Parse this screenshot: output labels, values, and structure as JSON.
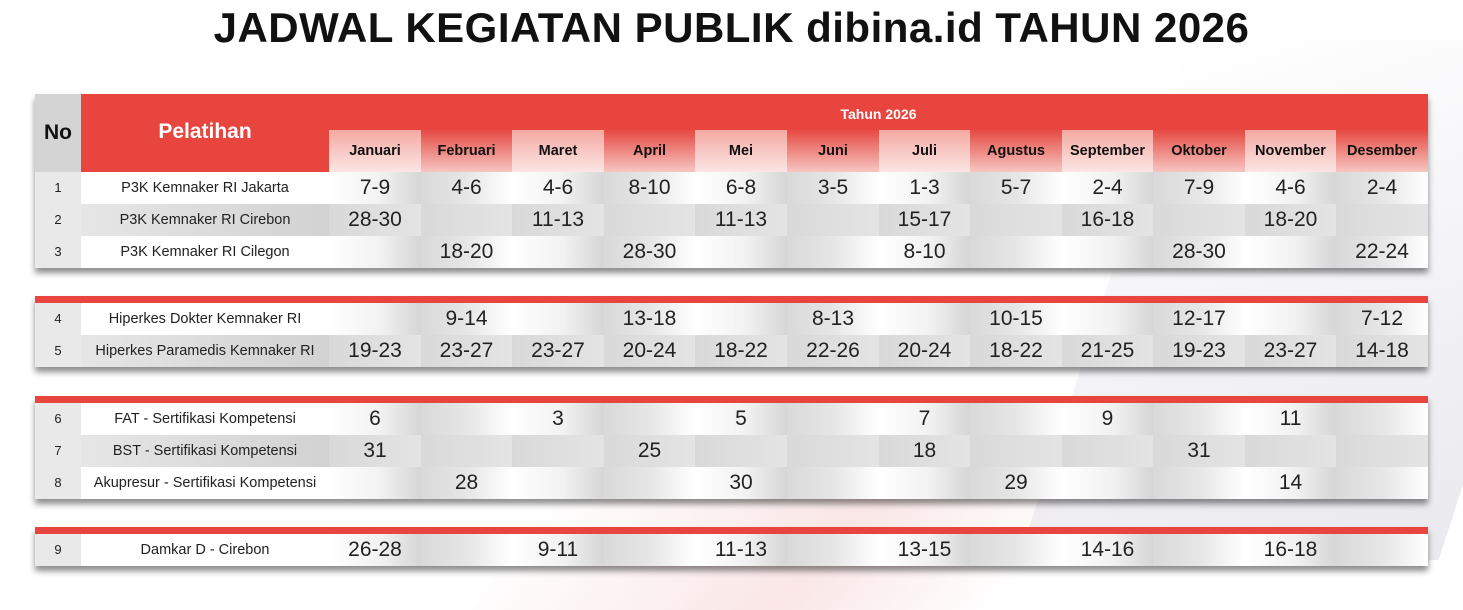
{
  "title": "JADWAL KEGIATAN PUBLIK dibina.id TAHUN 2026",
  "header": {
    "no": "No",
    "pelatihan": "Pelatihan",
    "year": "Tahun 2026",
    "months": [
      "Januari",
      "Februari",
      "Maret",
      "April",
      "Mei",
      "Juni",
      "Juli",
      "Agustus",
      "September",
      "Oktober",
      "November",
      "Desember"
    ]
  },
  "groups": [
    {
      "rows": [
        {
          "no": "1",
          "name": "P3K Kemnaker RI Jakarta",
          "dates": [
            "7-9",
            "4-6",
            "4-6",
            "8-10",
            "6-8",
            "3-5",
            "1-3",
            "5-7",
            "2-4",
            "7-9",
            "4-6",
            "2-4"
          ]
        },
        {
          "no": "2",
          "name": "P3K Kemnaker RI Cirebon",
          "dates": [
            "28-30",
            "",
            "11-13",
            "",
            "11-13",
            "",
            "15-17",
            "",
            "16-18",
            "",
            "18-20",
            ""
          ]
        },
        {
          "no": "3",
          "name": "P3K Kemnaker RI Cilegon",
          "dates": [
            "",
            "18-20",
            "",
            "28-30",
            "",
            "",
            "8-10",
            "",
            "",
            "28-30",
            "",
            "22-24"
          ]
        }
      ]
    },
    {
      "rows": [
        {
          "no": "4",
          "name": "Hiperkes Dokter Kemnaker RI",
          "dates": [
            "",
            "9-14",
            "",
            "13-18",
            "",
            "8-13",
            "",
            "10-15",
            "",
            "12-17",
            "",
            "7-12"
          ]
        },
        {
          "no": "5",
          "name": "Hiperkes Paramedis Kemnaker RI",
          "dates": [
            "19-23",
            "23-27",
            "23-27",
            "20-24",
            "18-22",
            "22-26",
            "20-24",
            "18-22",
            "21-25",
            "19-23",
            "23-27",
            "14-18"
          ]
        }
      ]
    },
    {
      "rows": [
        {
          "no": "6",
          "name": "FAT - Sertifikasi Kompetensi",
          "dates": [
            "6",
            "",
            "3",
            "",
            "5",
            "",
            "7",
            "",
            "9",
            "",
            "11",
            ""
          ]
        },
        {
          "no": "7",
          "name": "BST - Sertifikasi Kompetensi",
          "dates": [
            "31",
            "",
            "",
            "25",
            "",
            "",
            "18",
            "",
            "",
            "31",
            "",
            ""
          ]
        },
        {
          "no": "8",
          "name": "Akupresur - Sertifikasi Kompetensi",
          "dates": [
            "",
            "28",
            "",
            "",
            "30",
            "",
            "",
            "29",
            "",
            "",
            "14",
            ""
          ]
        }
      ]
    },
    {
      "rows": [
        {
          "no": "9",
          "name": "Damkar D - Cirebon",
          "dates": [
            "26-28",
            "",
            "9-11",
            "",
            "11-13",
            "",
            "13-15",
            "",
            "14-16",
            "",
            "16-18",
            ""
          ]
        }
      ]
    }
  ],
  "colors": {
    "accent": "#e8453e"
  }
}
